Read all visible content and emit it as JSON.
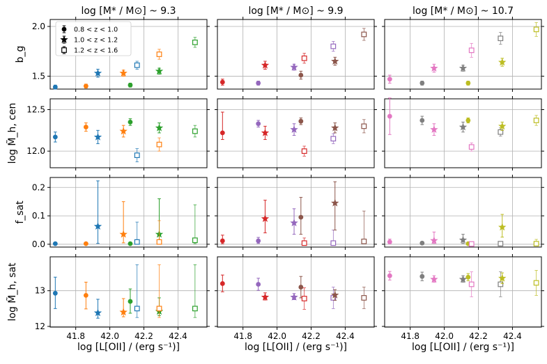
{
  "chart_data": {
    "type": "scatter",
    "description_free": true,
    "column_titles": [
      "log [M* / M⊙] ~ 9.3",
      "log [M* / M⊙] ~ 9.9",
      "log [M* / M⊙] ~ 10.7"
    ],
    "row_labels": [
      "b_g",
      "log M̃_h, cen",
      "f_sat",
      "log M̃_h, sat"
    ],
    "xlabel": "log [L[OII] / (erg s⁻¹)]",
    "xlim": [
      41.65,
      42.57
    ],
    "xticks": [
      41.8,
      42.0,
      42.2,
      42.4
    ],
    "row_ylims": [
      [
        1.37,
        2.07
      ],
      [
        11.8,
        12.63
      ],
      [
        -0.01,
        0.235
      ],
      [
        11.98,
        13.95
      ]
    ],
    "row_yticks": [
      [
        {
          "v": 1.5,
          "l": "1.5"
        },
        {
          "v": 2.0,
          "l": "2.0"
        }
      ],
      [
        {
          "v": 12.0,
          "l": "12.0"
        },
        {
          "v": 12.5,
          "l": "12.5"
        }
      ],
      [
        {
          "v": 0.0,
          "l": "0.0"
        },
        {
          "v": 0.1,
          "l": "0.1"
        },
        {
          "v": 0.2,
          "l": "0.2"
        }
      ],
      [
        {
          "v": 12,
          "l": "12"
        },
        {
          "v": 13,
          "l": "13"
        }
      ]
    ],
    "legend": {
      "location": "top-left of first panel",
      "entries": [
        {
          "marker": "circle",
          "label": "0.8 < z < 1.0"
        },
        {
          "marker": "star",
          "label": "1.0 < z < 1.2"
        },
        {
          "marker": "square-open",
          "label": "1.2 < z < 1.6"
        }
      ]
    },
    "series": [
      {
        "column": 0,
        "x": 41.68,
        "marker": "circle",
        "color": "#1f77b4",
        "y": [
          [
            1.39,
            0.02,
            0.02
          ],
          [
            12.17,
            0.06,
            0.06
          ],
          [
            0.002,
            0.0,
            0.002
          ],
          [
            12.93,
            0.43,
            0.45
          ]
        ]
      },
      {
        "column": 0,
        "x": 41.86,
        "marker": "circle",
        "color": "#ff7f0e",
        "y": [
          [
            1.4,
            0.02,
            0.02
          ],
          [
            12.29,
            0.05,
            0.05
          ],
          [
            0.002,
            0.0,
            0.002
          ],
          [
            12.87,
            0.38,
            0.37
          ]
        ]
      },
      {
        "column": 0,
        "x": 41.93,
        "marker": "star",
        "color": "#1f77b4",
        "y": [
          [
            1.53,
            0.04,
            0.04
          ],
          [
            12.17,
            0.08,
            0.08
          ],
          [
            0.063,
            0.06,
            0.16
          ],
          [
            12.38,
            0.15,
            0.38
          ]
        ]
      },
      {
        "column": 0,
        "x": 42.08,
        "marker": "star",
        "color": "#ff7f0e",
        "y": [
          [
            1.53,
            0.03,
            0.03
          ],
          [
            12.24,
            0.07,
            0.07
          ],
          [
            0.035,
            0.03,
            0.115
          ],
          [
            12.4,
            0.13,
            0.38
          ]
        ]
      },
      {
        "column": 0,
        "x": 42.12,
        "marker": "circle",
        "color": "#2ca02c",
        "y": [
          [
            1.41,
            0.02,
            0.02
          ],
          [
            12.35,
            0.04,
            0.04
          ],
          [
            0.002,
            0.0,
            0.002
          ],
          [
            12.7,
            0.33,
            0.35
          ]
        ]
      },
      {
        "column": 0,
        "x": 42.16,
        "marker": "square-open",
        "color": "#1f77b4",
        "y": [
          [
            1.61,
            0.04,
            0.04
          ],
          [
            11.95,
            0.08,
            0.08
          ],
          [
            0.008,
            0.007,
            0.07
          ],
          [
            12.5,
            0.25,
            1.23
          ]
        ]
      },
      {
        "column": 0,
        "x": 42.29,
        "marker": "star",
        "color": "#2ca02c",
        "y": [
          [
            1.55,
            0.03,
            0.03
          ],
          [
            12.28,
            0.06,
            0.06
          ],
          [
            0.035,
            0.03,
            0.125
          ],
          [
            12.42,
            0.12,
            0.38
          ]
        ]
      },
      {
        "column": 0,
        "x": 42.29,
        "marker": "square-open",
        "color": "#ff7f0e",
        "y": [
          [
            1.72,
            0.05,
            0.05
          ],
          [
            12.08,
            0.08,
            0.08
          ],
          [
            0.008,
            0.007,
            0.075
          ],
          [
            12.5,
            0.25,
            1.23
          ]
        ]
      },
      {
        "column": 0,
        "x": 42.5,
        "marker": "square-open",
        "color": "#2ca02c",
        "y": [
          [
            1.84,
            0.05,
            0.05
          ],
          [
            12.24,
            0.07,
            0.07
          ],
          [
            0.014,
            0.012,
            0.125
          ],
          [
            12.5,
            0.25,
            1.23
          ]
        ]
      },
      {
        "column": 1,
        "x": 41.68,
        "marker": "circle",
        "color": "#d62728",
        "y": [
          [
            1.44,
            0.03,
            0.03
          ],
          [
            12.22,
            0.08,
            0.25
          ],
          [
            0.012,
            0.01,
            0.02
          ],
          [
            13.2,
            0.23,
            0.24
          ]
        ]
      },
      {
        "column": 1,
        "x": 41.89,
        "marker": "circle",
        "color": "#9467bd",
        "y": [
          [
            1.43,
            0.02,
            0.02
          ],
          [
            12.33,
            0.04,
            0.04
          ],
          [
            0.012,
            0.009,
            0.012
          ],
          [
            13.18,
            0.17,
            0.17
          ]
        ]
      },
      {
        "column": 1,
        "x": 41.93,
        "marker": "star",
        "color": "#d62728",
        "y": [
          [
            1.61,
            0.04,
            0.04
          ],
          [
            12.22,
            0.08,
            0.08
          ],
          [
            0.09,
            0.05,
            0.065
          ],
          [
            12.82,
            0.08,
            0.12
          ]
        ]
      },
      {
        "column": 1,
        "x": 42.1,
        "marker": "star",
        "color": "#9467bd",
        "y": [
          [
            1.59,
            0.03,
            0.03
          ],
          [
            12.26,
            0.07,
            0.07
          ],
          [
            0.075,
            0.04,
            0.05
          ],
          [
            12.82,
            0.07,
            0.1
          ]
        ]
      },
      {
        "column": 1,
        "x": 42.14,
        "marker": "circle",
        "color": "#8c564b",
        "y": [
          [
            1.51,
            0.04,
            0.04
          ],
          [
            12.36,
            0.04,
            0.04
          ],
          [
            0.095,
            0.06,
            0.07
          ],
          [
            13.1,
            0.3,
            0.3
          ]
        ]
      },
      {
        "column": 1,
        "x": 42.16,
        "marker": "square-open",
        "color": "#d62728",
        "y": [
          [
            1.68,
            0.05,
            0.05
          ],
          [
            12.0,
            0.06,
            0.06
          ],
          [
            0.004,
            0.003,
            0.018
          ],
          [
            12.78,
            0.3,
            0.3
          ]
        ]
      },
      {
        "column": 1,
        "x": 42.33,
        "marker": "square-open",
        "color": "#9467bd",
        "y": [
          [
            1.8,
            0.05,
            0.05
          ],
          [
            12.15,
            0.06,
            0.06
          ],
          [
            0.004,
            0.003,
            0.046
          ],
          [
            12.8,
            0.3,
            0.3
          ]
        ]
      },
      {
        "column": 1,
        "x": 42.34,
        "marker": "star",
        "color": "#8c564b",
        "y": [
          [
            1.65,
            0.04,
            0.04
          ],
          [
            12.28,
            0.06,
            0.06
          ],
          [
            0.145,
            0.095,
            0.075
          ],
          [
            12.88,
            0.15,
            0.15
          ]
        ]
      },
      {
        "column": 1,
        "x": 42.51,
        "marker": "square-open",
        "color": "#8c564b",
        "y": [
          [
            1.92,
            0.06,
            0.06
          ],
          [
            12.3,
            0.08,
            0.08
          ],
          [
            0.01,
            0.008,
            0.107
          ],
          [
            12.8,
            0.3,
            0.3
          ]
        ]
      },
      {
        "column": 2,
        "x": 41.68,
        "marker": "circle",
        "color": "#e377c2",
        "y": [
          [
            1.47,
            0.04,
            0.04
          ],
          [
            12.42,
            0.22,
            0.22
          ],
          [
            0.008,
            0.006,
            0.01
          ],
          [
            13.42,
            0.12,
            0.12
          ]
        ]
      },
      {
        "column": 2,
        "x": 41.87,
        "marker": "circle",
        "color": "#7f7f7f",
        "y": [
          [
            1.43,
            0.02,
            0.02
          ],
          [
            12.37,
            0.05,
            0.05
          ],
          [
            0.004,
            0.003,
            0.005
          ],
          [
            13.4,
            0.12,
            0.12
          ]
        ]
      },
      {
        "column": 2,
        "x": 41.94,
        "marker": "star",
        "color": "#e377c2",
        "y": [
          [
            1.58,
            0.04,
            0.04
          ],
          [
            12.26,
            0.07,
            0.07
          ],
          [
            0.013,
            0.01,
            0.03
          ],
          [
            13.32,
            0.08,
            0.1
          ]
        ]
      },
      {
        "column": 2,
        "x": 42.11,
        "marker": "star",
        "color": "#7f7f7f",
        "y": [
          [
            1.58,
            0.03,
            0.03
          ],
          [
            12.29,
            0.06,
            0.06
          ],
          [
            0.015,
            0.012,
            0.02
          ],
          [
            13.32,
            0.08,
            0.1
          ]
        ]
      },
      {
        "column": 2,
        "x": 42.14,
        "marker": "circle",
        "color": "#bcbd22",
        "y": [
          [
            1.43,
            0.02,
            0.02
          ],
          [
            12.37,
            0.03,
            0.03
          ],
          [
            0.002,
            0.0,
            0.002
          ],
          [
            13.38,
            0.1,
            0.1
          ]
        ]
      },
      {
        "column": 2,
        "x": 42.16,
        "marker": "square-open",
        "color": "#e377c2",
        "y": [
          [
            1.76,
            0.07,
            0.07
          ],
          [
            12.05,
            0.05,
            0.05
          ],
          [
            0.001,
            0.001,
            0.006
          ],
          [
            13.18,
            0.35,
            0.35
          ]
        ]
      },
      {
        "column": 2,
        "x": 42.33,
        "marker": "square-open",
        "color": "#7f7f7f",
        "y": [
          [
            1.88,
            0.06,
            0.06
          ],
          [
            12.23,
            0.05,
            0.05
          ],
          [
            0.002,
            0.001,
            0.006
          ],
          [
            13.18,
            0.35,
            0.35
          ]
        ]
      },
      {
        "column": 2,
        "x": 42.34,
        "marker": "star",
        "color": "#bcbd22",
        "y": [
          [
            1.64,
            0.04,
            0.04
          ],
          [
            12.3,
            0.05,
            0.05
          ],
          [
            0.06,
            0.035,
            0.045
          ],
          [
            13.35,
            0.15,
            0.15
          ]
        ]
      },
      {
        "column": 2,
        "x": 42.54,
        "marker": "square-open",
        "color": "#bcbd22",
        "y": [
          [
            1.97,
            0.07,
            0.07
          ],
          [
            12.37,
            0.06,
            0.06
          ],
          [
            0.002,
            0.001,
            0.015
          ],
          [
            13.22,
            0.35,
            0.35
          ]
        ]
      }
    ]
  }
}
